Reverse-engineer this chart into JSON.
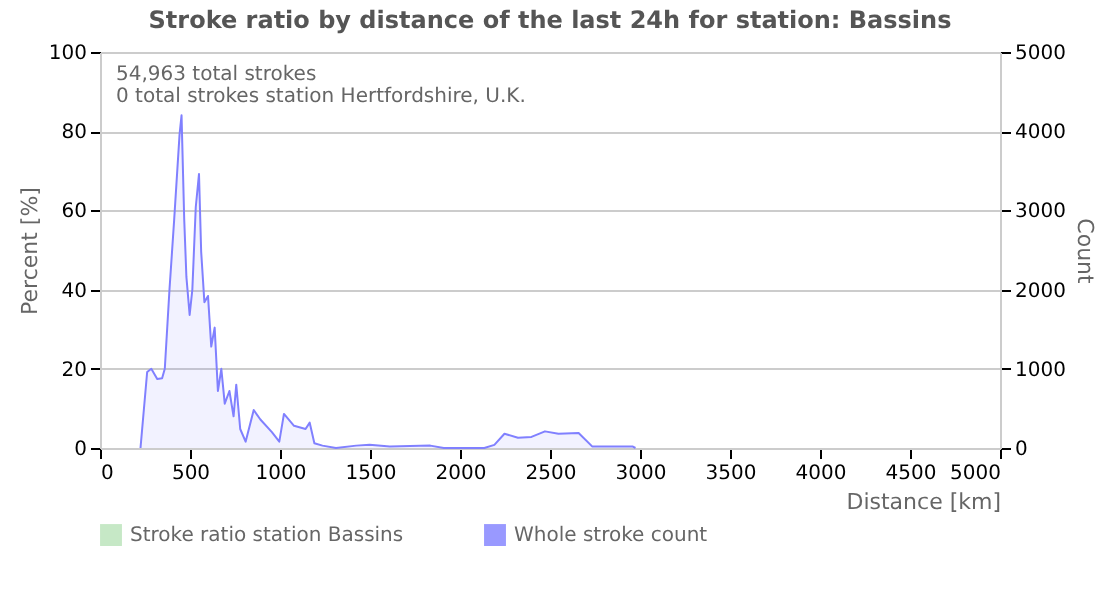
{
  "chart_data": {
    "type": "area",
    "title": "Stroke ratio by distance of the last 24h for station: Bassins",
    "xlabel": "Distance   [km]",
    "ylabel": "Percent   [%]",
    "y2label": "Count",
    "annotations": [
      "54,963 total strokes",
      "0 total strokes station Hertfordshire, U.K."
    ],
    "x": [
      225,
      262,
      285,
      318,
      345,
      360,
      386,
      412,
      442,
      453,
      468,
      480,
      498,
      513,
      532,
      550,
      562,
      580,
      600,
      618,
      637,
      655,
      674,
      693,
      719,
      742,
      757,
      779,
      809,
      854,
      891,
      955,
      996,
      1022,
      1078,
      1142,
      1165,
      1191,
      1236,
      1311,
      1423,
      1498,
      1610,
      1835,
      1910,
      2135,
      2191,
      2247,
      2322,
      2397,
      2472,
      2547,
      2659,
      2734,
      2958,
      2975
    ],
    "series": [
      {
        "name": "Stroke ratio station Bassins",
        "color": "#b8e2b8",
        "values": [
          null,
          null,
          null,
          null,
          null,
          null,
          null,
          null,
          null,
          null,
          null,
          null,
          null,
          null,
          null,
          null,
          null,
          null,
          null,
          null,
          null,
          null,
          null,
          null,
          null,
          null,
          null,
          null,
          null,
          null,
          null,
          null,
          null,
          null,
          null,
          null,
          null,
          null,
          null,
          null,
          null,
          null,
          null,
          null,
          null,
          null,
          null,
          null,
          null,
          null,
          null,
          null,
          null,
          null,
          null,
          null
        ]
      },
      {
        "name": "Whole stroke count",
        "color": "#8080ff",
        "axis": "y2",
        "values": [
          0,
          960,
          1000,
          870,
          880,
          1000,
          2000,
          2880,
          3960,
          4200,
          2880,
          2160,
          1680,
          2000,
          3040,
          3460,
          2480,
          1840,
          1920,
          1280,
          1520,
          720,
          1000,
          560,
          720,
          400,
          800,
          240,
          80,
          480,
          360,
          200,
          80,
          430,
          280,
          240,
          320,
          60,
          30,
          0,
          30,
          40,
          20,
          30,
          0,
          0,
          40,
          180,
          130,
          140,
          210,
          180,
          190,
          20,
          20,
          0
        ]
      }
    ],
    "xlim": [
      0,
      5000
    ],
    "xticks": [
      0,
      500,
      1000,
      1500,
      2000,
      2500,
      3000,
      3500,
      4000,
      4500,
      5000
    ],
    "ylim": [
      0,
      100
    ],
    "yticks": [
      0,
      20,
      40,
      60,
      80,
      100
    ],
    "y2lim": [
      0,
      5000
    ],
    "y2ticks": [
      0,
      1000,
      2000,
      3000,
      4000,
      5000
    ],
    "grid": "y",
    "legend": "bottom"
  }
}
